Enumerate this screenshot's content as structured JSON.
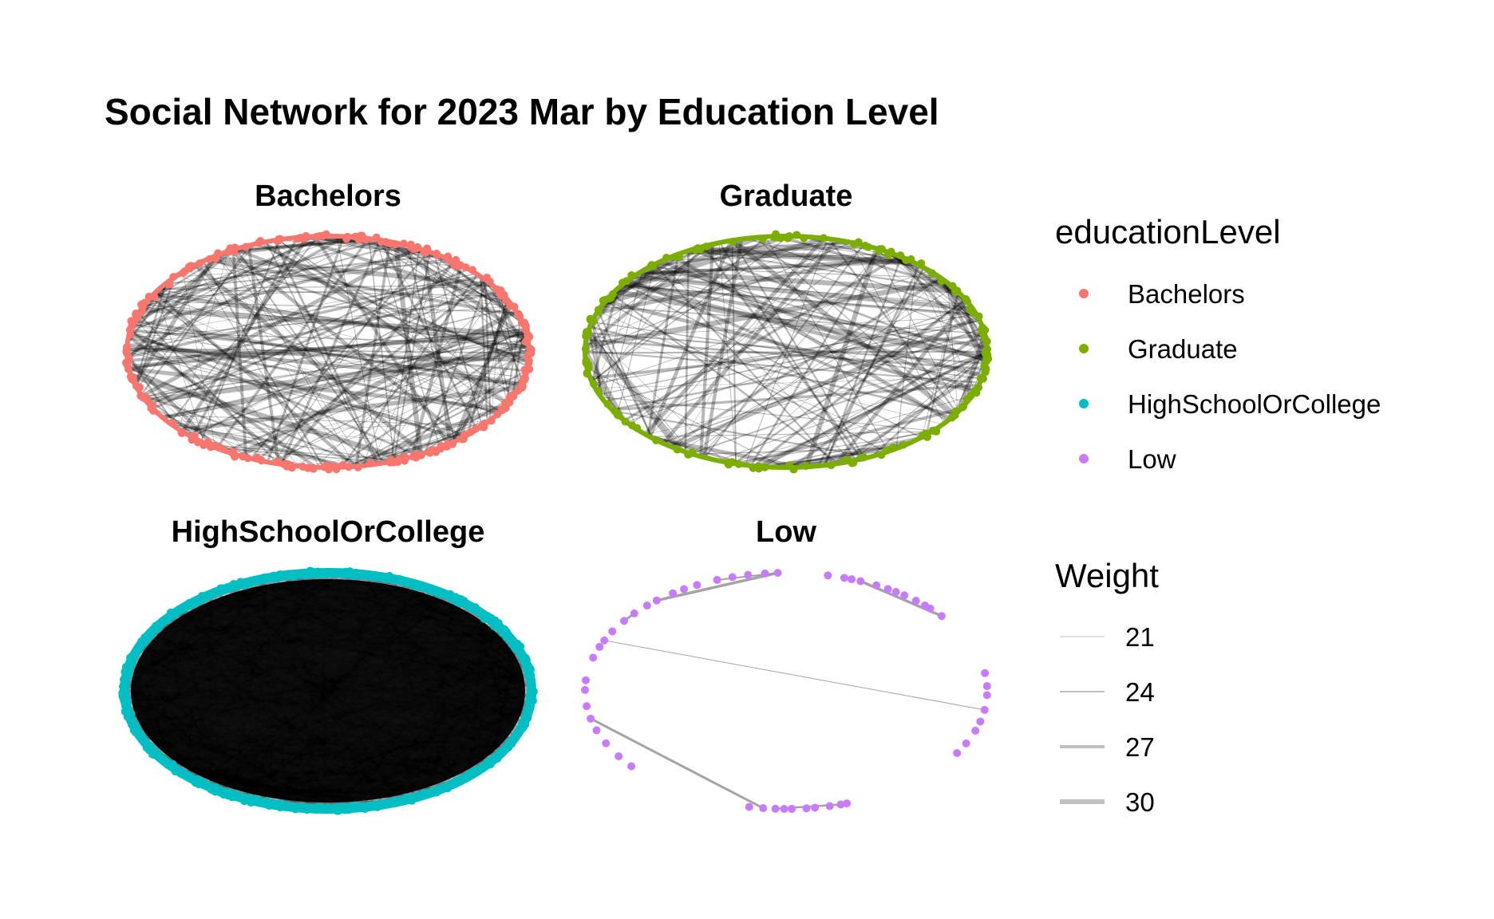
{
  "chart_data": {
    "type": "network",
    "title": "Social Network for 2023 Mar by Education Level",
    "layout": "circular",
    "edge_color": "#000000",
    "panels": [
      {
        "name": "Bachelors",
        "color": "#F8766D",
        "density": "high"
      },
      {
        "name": "Graduate",
        "color": "#7CAE00",
        "density": "high"
      },
      {
        "name": "HighSchoolOrCollege",
        "color": "#00BFC4",
        "density": "very high"
      },
      {
        "name": "Low",
        "color": "#C77CFF",
        "density": "sparse"
      }
    ],
    "legend": {
      "color_title": "educationLevel",
      "color_items": [
        {
          "label": "Bachelors",
          "color": "#F8766D"
        },
        {
          "label": "Graduate",
          "color": "#7CAE00"
        },
        {
          "label": "HighSchoolOrCollege",
          "color": "#00BFC4"
        },
        {
          "label": "Low",
          "color": "#C77CFF"
        }
      ],
      "weight_title": "Weight",
      "weight_items": [
        "21",
        "24",
        "27",
        "30"
      ],
      "placement": "right"
    }
  }
}
